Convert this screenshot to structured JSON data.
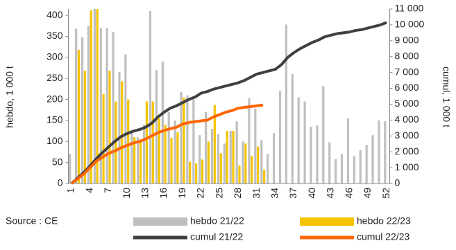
{
  "chart_data": {
    "type": "bar_line",
    "source": "Source : CE",
    "ylabel": "hebdo, 1 000 t",
    "y2label": "cumul, 1 000 t",
    "categories": [
      1,
      null,
      null,
      4,
      null,
      null,
      7,
      null,
      null,
      10,
      null,
      null,
      13,
      null,
      null,
      16,
      null,
      null,
      19,
      null,
      null,
      22,
      null,
      null,
      25,
      null,
      null,
      28,
      null,
      null,
      31,
      null,
      null,
      34,
      null,
      null,
      37,
      null,
      null,
      40,
      null,
      null,
      43,
      null,
      null,
      46,
      null,
      null,
      49,
      null,
      null,
      52
    ],
    "ylim": [
      0,
      415
    ],
    "yticks": [
      0,
      50,
      100,
      150,
      200,
      250,
      300,
      350,
      400
    ],
    "y2lim": [
      0,
      11000
    ],
    "y2ticks": [
      0,
      {
        "value": 1000,
        "label": "1 000"
      },
      {
        "value": 2000,
        "label": "2 000"
      },
      {
        "value": 3000,
        "label": "3 000"
      },
      {
        "value": 4000,
        "label": "4 000"
      },
      {
        "value": 5000,
        "label": "5 000"
      },
      {
        "value": 6000,
        "label": "6 000"
      },
      {
        "value": 7000,
        "label": "7 000"
      },
      {
        "value": 8000,
        "label": "8 000"
      },
      {
        "value": 9000,
        "label": "9 000"
      },
      {
        "value": 10000,
        "label": "10 000"
      },
      {
        "value": 11000,
        "label": "11 000"
      }
    ],
    "series": [
      {
        "name": "hebdo 21/22",
        "kind": "bar",
        "color": "#bfbfbf",
        "values": [
          70,
          368,
          348,
          375,
          420,
          370,
          370,
          360,
          265,
          307,
          125,
          110,
          140,
          410,
          270,
          290,
          170,
          150,
          218,
          210,
          200,
          115,
          170,
          130,
          118,
          95,
          125,
          148,
          100,
          203,
          178,
          103,
          70,
          120,
          220,
          378,
          260,
          205,
          195,
          135,
          138,
          232,
          98,
          58,
          70,
          155,
          65,
          80,
          92,
          115,
          150,
          148
        ]
      },
      {
        "name": "hebdo 22/23",
        "kind": "bar",
        "color": "#f5c400",
        "values": [
          null,
          318,
          268,
          412,
          420,
          213,
          268,
          195,
          243,
          200,
          110,
          100,
          195,
          195,
          155,
          140,
          108,
          122,
          205,
          52,
          48,
          57,
          100,
          187,
          72,
          125,
          125,
          43,
          95,
          65,
          88,
          33,
          null,
          null,
          null,
          null,
          null,
          null,
          null,
          null,
          null,
          null,
          null,
          null,
          null,
          null,
          null,
          null,
          null,
          null,
          null,
          null
        ]
      },
      {
        "name": "cumul 21/22",
        "kind": "line",
        "axis": "y2",
        "color": "#404040",
        "values": [
          0,
          350,
          700,
          1100,
          1550,
          1950,
          2300,
          2650,
          2950,
          3150,
          3300,
          3400,
          3550,
          3800,
          4200,
          4500,
          4750,
          4900,
          5100,
          5300,
          5450,
          5700,
          5800,
          5950,
          6050,
          6150,
          6250,
          6350,
          6500,
          6700,
          6900,
          7000,
          7100,
          7200,
          7500,
          7950,
          8250,
          8500,
          8700,
          8900,
          9050,
          9250,
          9350,
          9450,
          9500,
          9550,
          9650,
          9700,
          9800,
          9900,
          10000,
          10150
        ]
      },
      {
        "name": "cumul 22/23",
        "kind": "line",
        "axis": "y2",
        "color": "#ff6600",
        "values": [
          0,
          300,
          600,
          1000,
          1400,
          1650,
          1900,
          2050,
          2250,
          2400,
          2550,
          2650,
          2800,
          3000,
          3200,
          3350,
          3450,
          3550,
          3750,
          3850,
          3900,
          3950,
          4000,
          4200,
          4350,
          4500,
          4600,
          4750,
          4800,
          4850,
          4900,
          4950,
          null,
          null,
          null,
          null,
          null,
          null,
          null,
          null,
          null,
          null,
          null,
          null,
          null,
          null,
          null,
          null,
          null,
          null,
          null,
          null
        ]
      }
    ]
  }
}
